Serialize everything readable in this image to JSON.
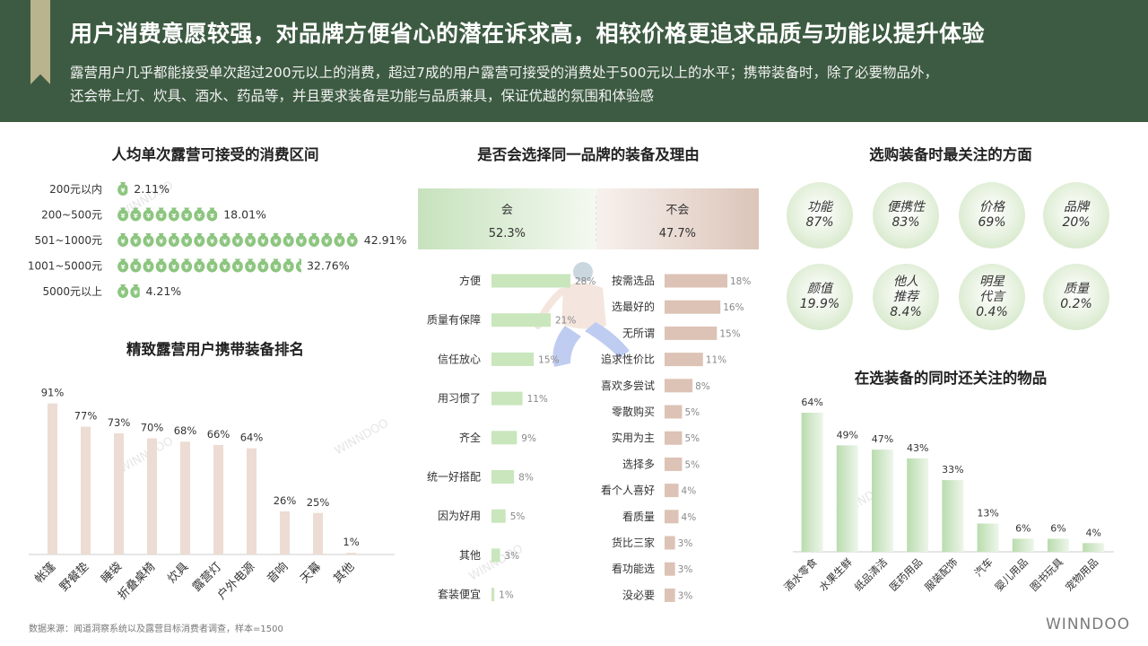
{
  "header": {
    "title": "用户消费意愿较强，对品牌方便省心的潜在诉求高，相较价格更追求品质与功能以提升体验",
    "subtitle_line1": "露营用户几乎都能接受单次超过200元以上的消费，超过7成的用户露营可接受的消费处于500元以上的水平；携带装备时，除了必要物品外，",
    "subtitle_line2": "还会带上灯、炊具、酒水、药品等，并且要求装备是功能与品质兼具，保证优越的氛围和体验感"
  },
  "footer": {
    "source": "数据来源：闻道洞察系统以及露营目标消费者调查，样本=1500",
    "logo": "WINNDOO"
  },
  "watermark": "WINNDOO",
  "colors": {
    "header_bg": "#3d5b42",
    "ribbon": "#b9b48e",
    "green_icon": "#8cc57f",
    "green_bar": "#c9e6bc",
    "pink_bar": "#eddcd3",
    "brown_bar": "#dcc3b6"
  },
  "chart_data": [
    {
      "id": "spend",
      "type": "bar",
      "title": "人均单次露营可接受的消费区间",
      "icon": "money-bag-icon",
      "categories": [
        "200元以内",
        "200~500元",
        "501~1000元",
        "1001~5000元",
        "5000元以上"
      ],
      "values": [
        2.11,
        18.01,
        42.91,
        32.76,
        4.21
      ],
      "value_labels": [
        "2.11%",
        "18.01%",
        "42.91%",
        "32.76%",
        "4.21%"
      ]
    },
    {
      "id": "gear",
      "type": "bar",
      "title": "精致露营用户携带装备排名",
      "categories": [
        "帐篷",
        "野餐垫",
        "睡袋",
        "折叠桌椅",
        "炊具",
        "露营灯",
        "户外电源",
        "音响",
        "天幕",
        "其他"
      ],
      "values": [
        91,
        77,
        73,
        70,
        68,
        66,
        64,
        26,
        25,
        1
      ],
      "value_labels": [
        "91%",
        "77%",
        "73%",
        "70%",
        "68%",
        "66%",
        "64%",
        "26%",
        "25%",
        "1%"
      ]
    },
    {
      "id": "brand",
      "type": "bar",
      "title": "是否会选择同一品牌的装备及理由",
      "summary": {
        "yes_label": "会",
        "yes_value": "52.3%",
        "no_label": "不会",
        "no_value": "47.7%"
      },
      "yes": {
        "categories": [
          "方便",
          "质量有保障",
          "信任放心",
          "用习惯了",
          "齐全",
          "统一好搭配",
          "因为好用",
          "其他",
          "套装便宜"
        ],
        "values": [
          28,
          21,
          15,
          11,
          9,
          8,
          5,
          3,
          1
        ],
        "value_labels": [
          "28%",
          "21%",
          "15%",
          "11%",
          "9%",
          "8%",
          "5%",
          "3%",
          "1%"
        ]
      },
      "no": {
        "categories": [
          "按需选品",
          "选最好的",
          "无所谓",
          "追求性价比",
          "喜欢多尝试",
          "零散购买",
          "实用为主",
          "选择多",
          "看个人喜好",
          "看质量",
          "货比三家",
          "看功能选",
          "没必要"
        ],
        "values": [
          18,
          16,
          15,
          11,
          8,
          5,
          5,
          5,
          4,
          4,
          3,
          3,
          3
        ],
        "value_labels": [
          "18%",
          "16%",
          "15%",
          "11%",
          "8%",
          "5%",
          "5%",
          "5%",
          "4%",
          "4%",
          "3%",
          "3%",
          "3%"
        ]
      }
    },
    {
      "id": "focus",
      "type": "table",
      "title": "选购装备时最关注的方面",
      "items": [
        {
          "label": "功能",
          "value": "87%"
        },
        {
          "label": "便携性",
          "value": "83%"
        },
        {
          "label": "价格",
          "value": "69%"
        },
        {
          "label": "品牌",
          "value": "20%"
        },
        {
          "label": "颜值",
          "value": "19.9%"
        },
        {
          "label": "他人推荐",
          "value": "8.4%"
        },
        {
          "label": "明星代言",
          "value": "0.4%"
        },
        {
          "label": "质量",
          "value": "0.2%"
        }
      ]
    },
    {
      "id": "also",
      "type": "bar",
      "title": "在选装备的同时还关注的物品",
      "categories": [
        "酒水零食",
        "水果生鲜",
        "纸品清洁",
        "医药用品",
        "服装配饰",
        "汽车",
        "婴儿用品",
        "图书玩具",
        "宠物用品"
      ],
      "values": [
        64,
        49,
        47,
        43,
        33,
        13,
        6,
        6,
        4
      ],
      "value_labels": [
        "64%",
        "49%",
        "47%",
        "43%",
        "33%",
        "13%",
        "6%",
        "6%",
        "4%"
      ]
    }
  ]
}
